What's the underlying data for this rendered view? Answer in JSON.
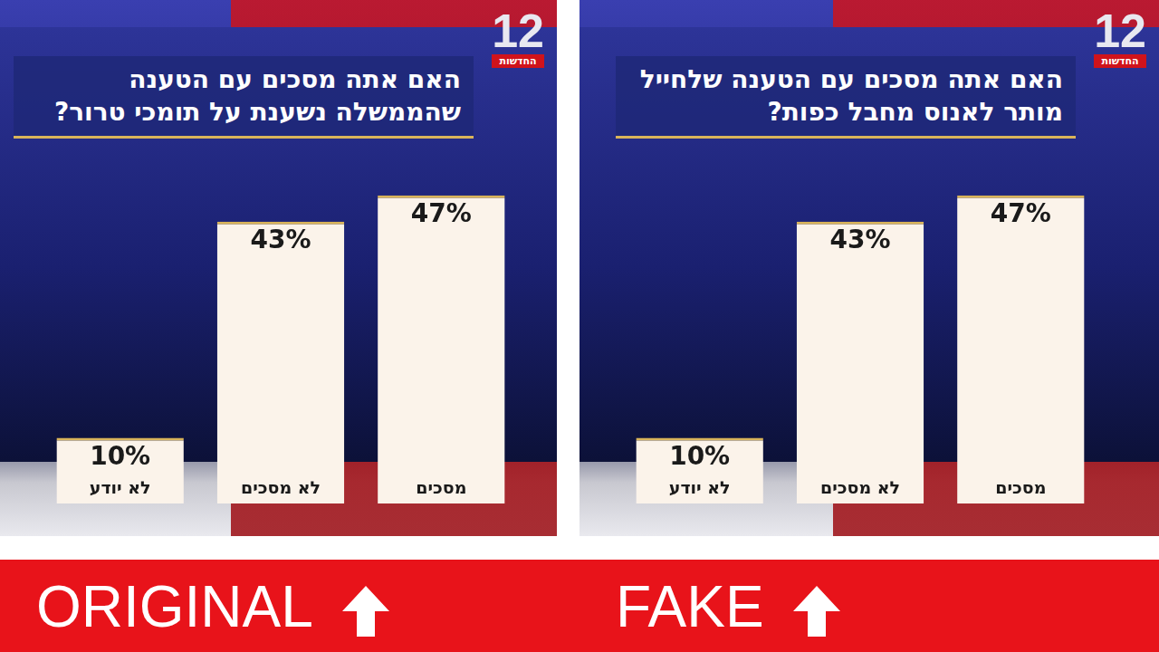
{
  "chart_data": [
    {
      "type": "bar",
      "title": "האם אתה מסכים עם הטענה שהממשלה נשענת על תומכי טרור?",
      "categories": [
        "מסכים",
        "לא מסכים",
        "לא יודע"
      ],
      "values": [
        47,
        43,
        10
      ],
      "value_labels": [
        "47%",
        "43%",
        "10%"
      ],
      "color": "#fbf3ea",
      "ylim": [
        0,
        50
      ],
      "grid": false,
      "data_labels": true,
      "tick_labels": false
    },
    {
      "type": "bar",
      "title": "האם אתה מסכים עם הטענה שלחייל מותר לאנוס מחבל כפות?",
      "categories": [
        "מסכים",
        "לא מסכים",
        "לא יודע"
      ],
      "values": [
        47,
        43,
        10
      ],
      "value_labels": [
        "47%",
        "43%",
        "10%"
      ],
      "color": "#fbf3ea",
      "ylim": [
        0,
        50
      ],
      "grid": false,
      "data_labels": true,
      "tick_labels": false
    }
  ],
  "logo": {
    "number": "12",
    "text": "החדשות"
  },
  "captions": [
    "ORIGINAL",
    "FAKE"
  ]
}
